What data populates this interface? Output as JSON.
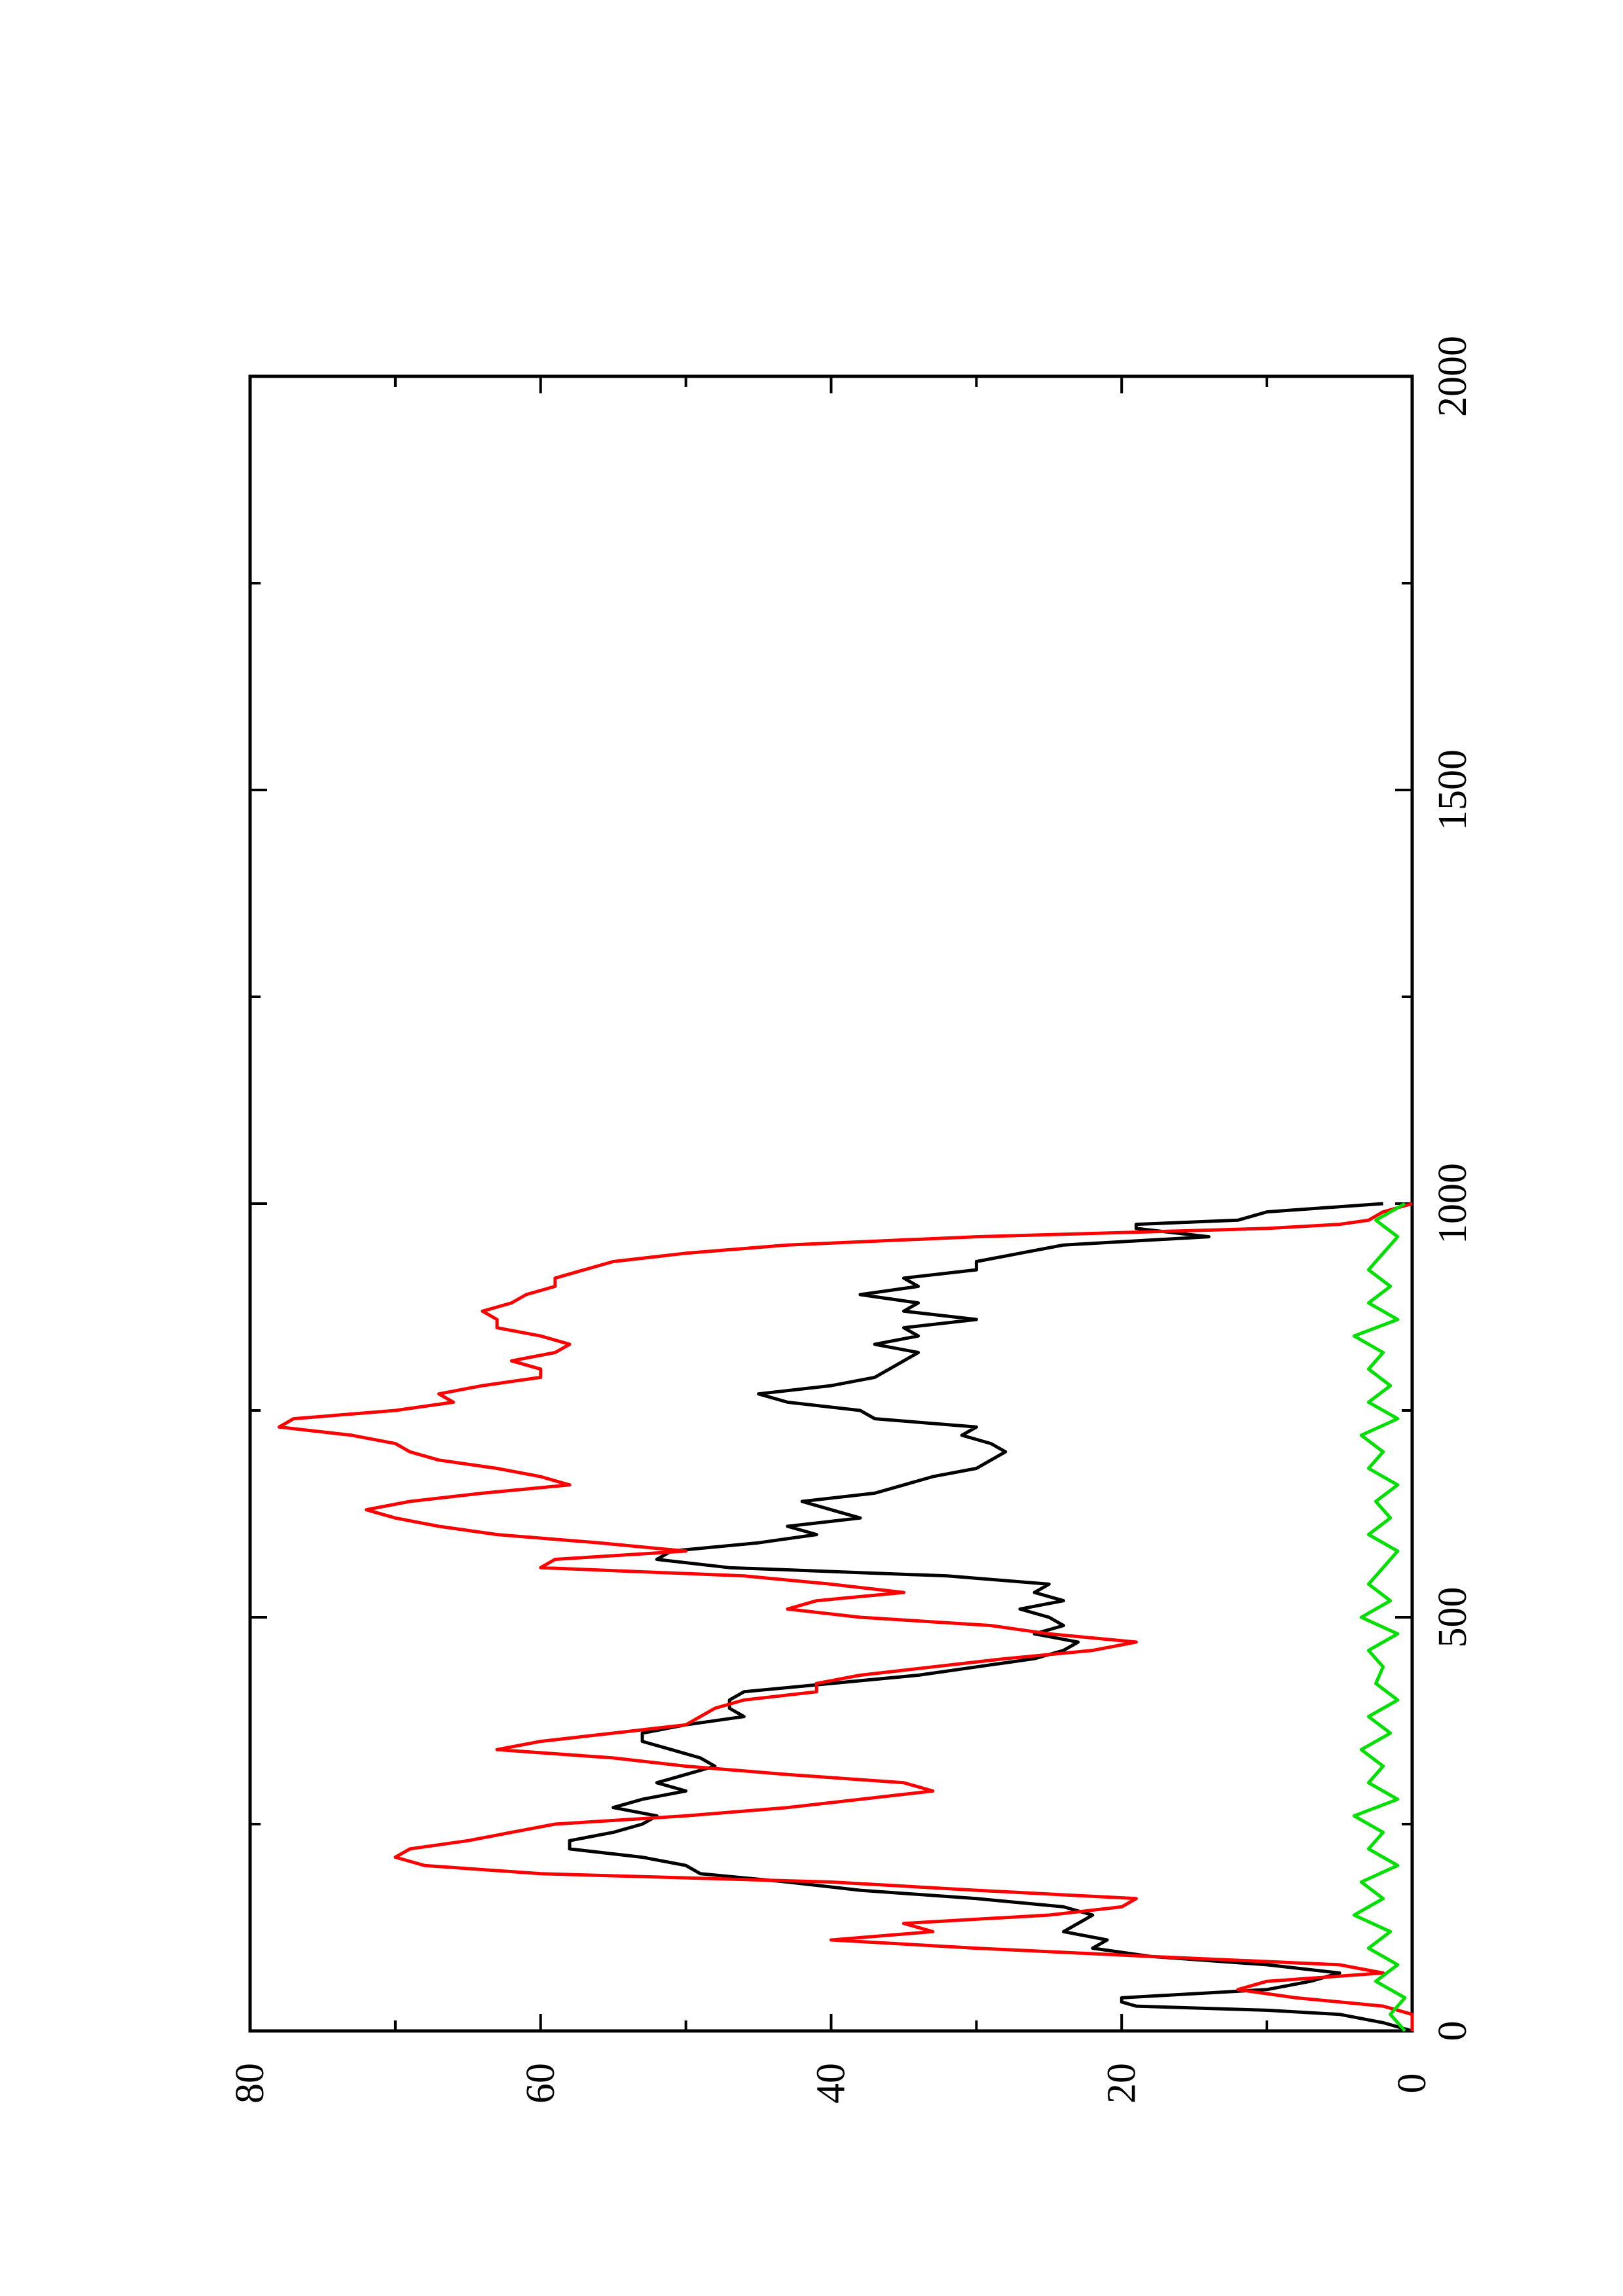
{
  "chart_data": {
    "type": "line",
    "orientation": "rotated-90-ccw",
    "title": "",
    "xlabel": "",
    "ylabel": "",
    "xlim": [
      0,
      2000
    ],
    "ylim": [
      0,
      80
    ],
    "xticks": [
      0,
      500,
      1000,
      1500,
      2000
    ],
    "yticks": [
      0,
      20,
      40,
      60,
      80
    ],
    "xtick_labels": [
      "0",
      "500",
      "1000",
      "1500",
      "2000"
    ],
    "ytick_labels": [
      "0",
      "20",
      "40",
      "60",
      "80"
    ],
    "grid": false,
    "legend": "none",
    "series": [
      {
        "color": "#000000",
        "x": [
          0,
          10,
          20,
          25,
          30,
          35,
          40,
          50,
          60,
          70,
          80,
          90,
          100,
          110,
          120,
          130,
          140,
          150,
          160,
          170,
          180,
          190,
          200,
          210,
          220,
          230,
          240,
          250,
          260,
          270,
          280,
          290,
          300,
          310,
          320,
          330,
          340,
          350,
          360,
          370,
          380,
          390,
          400,
          410,
          420,
          430,
          440,
          450,
          460,
          470,
          480,
          490,
          500,
          510,
          520,
          530,
          540,
          550,
          560,
          570,
          580,
          590,
          600,
          610,
          620,
          630,
          640,
          650,
          660,
          670,
          680,
          690,
          700,
          710,
          720,
          730,
          740,
          750,
          760,
          770,
          780,
          790,
          800,
          810,
          820,
          830,
          840,
          850,
          860,
          870,
          880,
          890,
          900,
          910,
          920,
          930,
          940,
          950,
          960,
          970,
          975,
          980,
          990,
          1000
        ],
        "y": [
          0,
          2,
          5,
          10,
          19,
          20,
          20,
          10,
          7,
          5,
          10,
          18,
          22,
          21,
          24,
          23,
          22,
          24,
          30,
          38,
          43,
          49,
          50,
          53,
          58,
          58,
          55,
          53,
          52,
          55,
          53,
          50,
          52,
          50,
          48,
          49,
          51,
          53,
          53,
          50,
          46,
          47,
          47,
          46,
          40,
          34,
          30,
          26,
          24,
          23,
          26,
          24,
          25,
          27,
          24,
          26,
          25,
          32,
          47,
          52,
          51,
          45,
          41,
          43,
          38,
          40,
          42,
          37,
          35,
          33,
          30,
          29,
          28,
          29,
          31,
          30,
          37,
          38,
          43,
          45,
          40,
          37,
          36,
          35,
          34,
          37,
          34,
          35,
          30,
          35,
          34,
          38,
          34,
          35,
          30,
          30,
          27,
          24,
          14,
          19,
          19,
          12,
          10,
          2
        ]
      },
      {
        "color": "#ff0000",
        "x": [
          0,
          20,
          30,
          40,
          45,
          50,
          60,
          70,
          80,
          90,
          100,
          110,
          120,
          130,
          140,
          150,
          160,
          170,
          180,
          190,
          200,
          210,
          220,
          230,
          240,
          250,
          260,
          270,
          280,
          290,
          300,
          310,
          320,
          330,
          340,
          350,
          360,
          370,
          380,
          390,
          400,
          410,
          420,
          430,
          440,
          450,
          460,
          470,
          480,
          490,
          500,
          510,
          520,
          530,
          540,
          550,
          560,
          570,
          580,
          590,
          600,
          610,
          620,
          630,
          640,
          650,
          660,
          670,
          680,
          690,
          700,
          710,
          720,
          730,
          740,
          750,
          760,
          770,
          780,
          790,
          800,
          810,
          820,
          830,
          840,
          850,
          860,
          870,
          880,
          890,
          900,
          910,
          920,
          930,
          940,
          950,
          960,
          970,
          975,
          980,
          990,
          1000
        ],
        "y": [
          0,
          0,
          2,
          8,
          10,
          12,
          10,
          2,
          5,
          18,
          30,
          40,
          33,
          35,
          25,
          20,
          19,
          30,
          40,
          60,
          68,
          70,
          69,
          65,
          62,
          59,
          50,
          43,
          38,
          33,
          35,
          43,
          50,
          55,
          63,
          60,
          55,
          50,
          49,
          48,
          46,
          41,
          41,
          38,
          33,
          28,
          22,
          19,
          25,
          29,
          38,
          43,
          41,
          35,
          40,
          46,
          60,
          59,
          50,
          56,
          63,
          67,
          70,
          72,
          69,
          64,
          58,
          60,
          63,
          67,
          69,
          70,
          73,
          78,
          77,
          70,
          66,
          67,
          64,
          60,
          60,
          62,
          59,
          58,
          60,
          63,
          63,
          64,
          62,
          61,
          59,
          59,
          57,
          55,
          50,
          43,
          30,
          10,
          5,
          3,
          2,
          0
        ]
      },
      {
        "color": "#00e000",
        "x": [
          0,
          20,
          40,
          60,
          80,
          100,
          120,
          140,
          160,
          180,
          200,
          220,
          240,
          260,
          280,
          300,
          320,
          340,
          360,
          380,
          400,
          420,
          440,
          460,
          480,
          500,
          520,
          540,
          560,
          580,
          600,
          620,
          640,
          660,
          680,
          700,
          720,
          740,
          760,
          780,
          800,
          820,
          840,
          860,
          880,
          900,
          920,
          940,
          960,
          980,
          1000
        ],
        "y": [
          0.5,
          1.5,
          0.5,
          2.5,
          1,
          3,
          1.5,
          4,
          2,
          3.5,
          1,
          3,
          2,
          4,
          1,
          3,
          2,
          3.5,
          1.5,
          3,
          1,
          2.5,
          2,
          3,
          1,
          3.5,
          1.5,
          3,
          2,
          1,
          3,
          1.5,
          2.5,
          1,
          3,
          2,
          3.5,
          1,
          3,
          1.5,
          3,
          2,
          4,
          1,
          3,
          1.5,
          3,
          2,
          1,
          2.5,
          0.5
        ]
      }
    ]
  }
}
